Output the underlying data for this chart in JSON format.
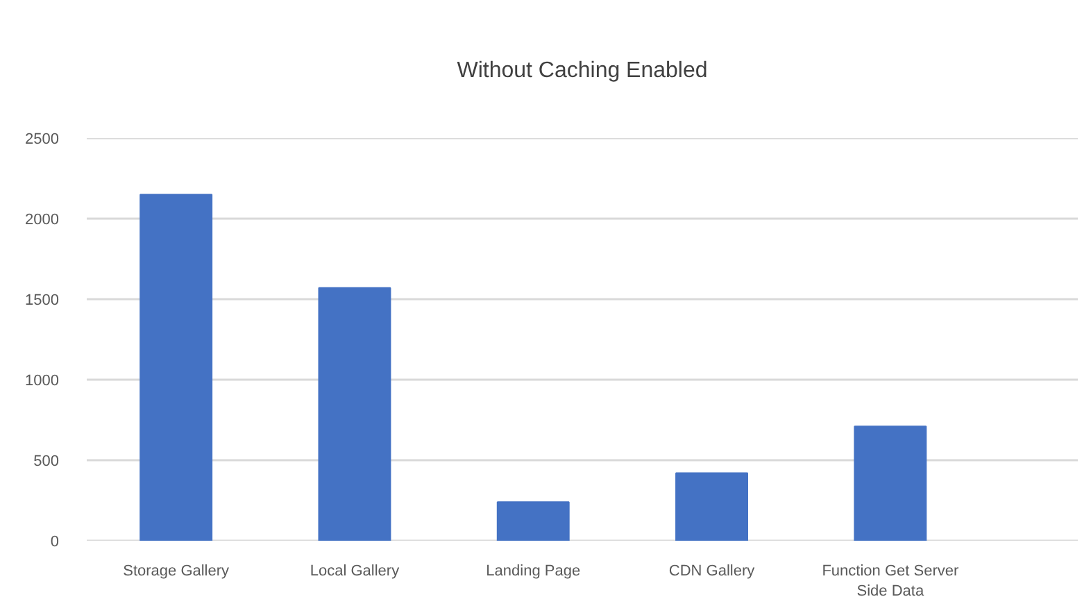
{
  "chart_data": {
    "type": "bar",
    "title": "Without Caching Enabled",
    "categories": [
      "Storage Gallery",
      "Local Gallery",
      "Landing Page",
      "CDN Gallery",
      "Function Get Server Side Data"
    ],
    "values": [
      2150,
      1570,
      240,
      420,
      710
    ],
    "color": "#4472c4",
    "ylim": [
      0,
      2500
    ],
    "yticks": [
      0,
      500,
      1000,
      1500,
      2000,
      2500
    ],
    "grid": "y"
  }
}
